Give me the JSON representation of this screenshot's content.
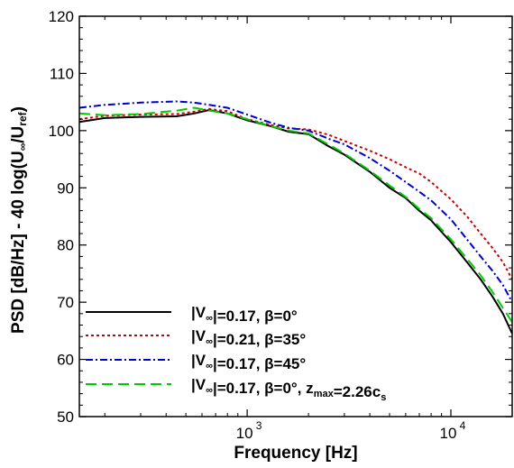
{
  "chart_data": {
    "type": "line",
    "xlabel": "Frequency [Hz]",
    "ylabel_parts": [
      "PSD [dB/Hz] - 40 log(U",
      "∞",
      "/U",
      "ref",
      ")"
    ],
    "x_scale": "log",
    "xlim": [
      150,
      20000
    ],
    "ylim": [
      50,
      120
    ],
    "y_ticks": [
      50,
      60,
      70,
      80,
      90,
      100,
      110,
      120
    ],
    "y_tick_labels": [
      "50",
      "60",
      "70",
      "80",
      "90",
      "100",
      "110",
      "120"
    ],
    "x_ticks": [
      1000,
      10000
    ],
    "x_tick_labels": [
      {
        "base": "10",
        "exp": "3"
      },
      {
        "base": "10",
        "exp": "4"
      }
    ],
    "grid": false,
    "legend_position": "bottom-left",
    "series": [
      {
        "name_parts": [
          {
            "t": "|V"
          },
          {
            "t": "∞",
            "sub": true
          },
          {
            "t": "|=0.17, β=0°"
          }
        ],
        "color": "#000000",
        "dash": "",
        "x": [
          150,
          200,
          300,
          450,
          550,
          650,
          800,
          1000,
          1300,
          1600,
          2000,
          2500,
          3000,
          4000,
          5000,
          6000,
          7000,
          8000,
          10000,
          12000,
          14000,
          16000,
          18000,
          20000
        ],
        "y": [
          101.5,
          102.2,
          102.4,
          102.5,
          103.0,
          103.6,
          103.0,
          101.8,
          100.8,
          99.8,
          99.4,
          97.3,
          95.8,
          92.8,
          90.0,
          88.2,
          86.0,
          84.3,
          80.5,
          77.0,
          74.0,
          71.0,
          68.0,
          64.5
        ]
      },
      {
        "name_parts": [
          {
            "t": "|V"
          },
          {
            "t": "∞",
            "sub": true
          },
          {
            "t": "|=0.21, β=35°"
          }
        ],
        "color": "#cc0000",
        "dash": "3,3",
        "x": [
          150,
          200,
          300,
          450,
          550,
          650,
          800,
          1000,
          1300,
          1600,
          2000,
          2500,
          3000,
          4000,
          5000,
          6000,
          7000,
          8000,
          10000,
          12000,
          14000,
          16000,
          18000,
          20000
        ],
        "y": [
          102.0,
          102.6,
          102.8,
          102.9,
          103.3,
          103.8,
          103.4,
          102.0,
          101.0,
          100.4,
          100.2,
          99.3,
          98.2,
          96.5,
          95.0,
          93.6,
          92.5,
          91.0,
          88.0,
          85.0,
          82.0,
          79.5,
          77.0,
          74.0
        ]
      },
      {
        "name_parts": [
          {
            "t": "|V"
          },
          {
            "t": "∞",
            "sub": true
          },
          {
            "t": "|=0.17, β=45°"
          }
        ],
        "color": "#0000cc",
        "dash": "8,3,2,3",
        "x": [
          150,
          200,
          300,
          450,
          550,
          650,
          800,
          1000,
          1300,
          1600,
          2000,
          2500,
          3000,
          4000,
          5000,
          6000,
          7000,
          8000,
          10000,
          12000,
          14000,
          16000,
          18000,
          20000
        ],
        "y": [
          104.0,
          104.5,
          104.9,
          105.1,
          104.9,
          104.5,
          104.0,
          102.8,
          101.4,
          100.5,
          100.0,
          98.6,
          97.6,
          95.2,
          93.0,
          91.0,
          89.3,
          87.8,
          84.5,
          81.0,
          78.0,
          75.5,
          73.0,
          70.0
        ]
      },
      {
        "name_parts": [
          {
            "t": "|V"
          },
          {
            "t": "∞",
            "sub": true
          },
          {
            "t": "|=0.17, β=0°, z"
          },
          {
            "t": "max",
            "sub": true
          },
          {
            "t": "=2.26c"
          },
          {
            "t": "s",
            "sub": true
          }
        ],
        "color": "#00cc00",
        "dash": "12,6",
        "x": [
          150,
          200,
          300,
          450,
          550,
          650,
          800,
          1000,
          1300,
          1600,
          2000,
          2500,
          3000,
          4000,
          5000,
          6000,
          7000,
          8000,
          10000,
          12000,
          14000,
          16000,
          18000,
          20000
        ],
        "y": [
          103.0,
          102.7,
          102.9,
          103.5,
          104.0,
          103.5,
          103.0,
          102.0,
          100.8,
          100.0,
          99.5,
          97.6,
          96.0,
          93.0,
          90.4,
          88.4,
          86.3,
          84.7,
          81.0,
          77.6,
          74.7,
          71.8,
          69.0,
          66.5
        ]
      }
    ]
  }
}
